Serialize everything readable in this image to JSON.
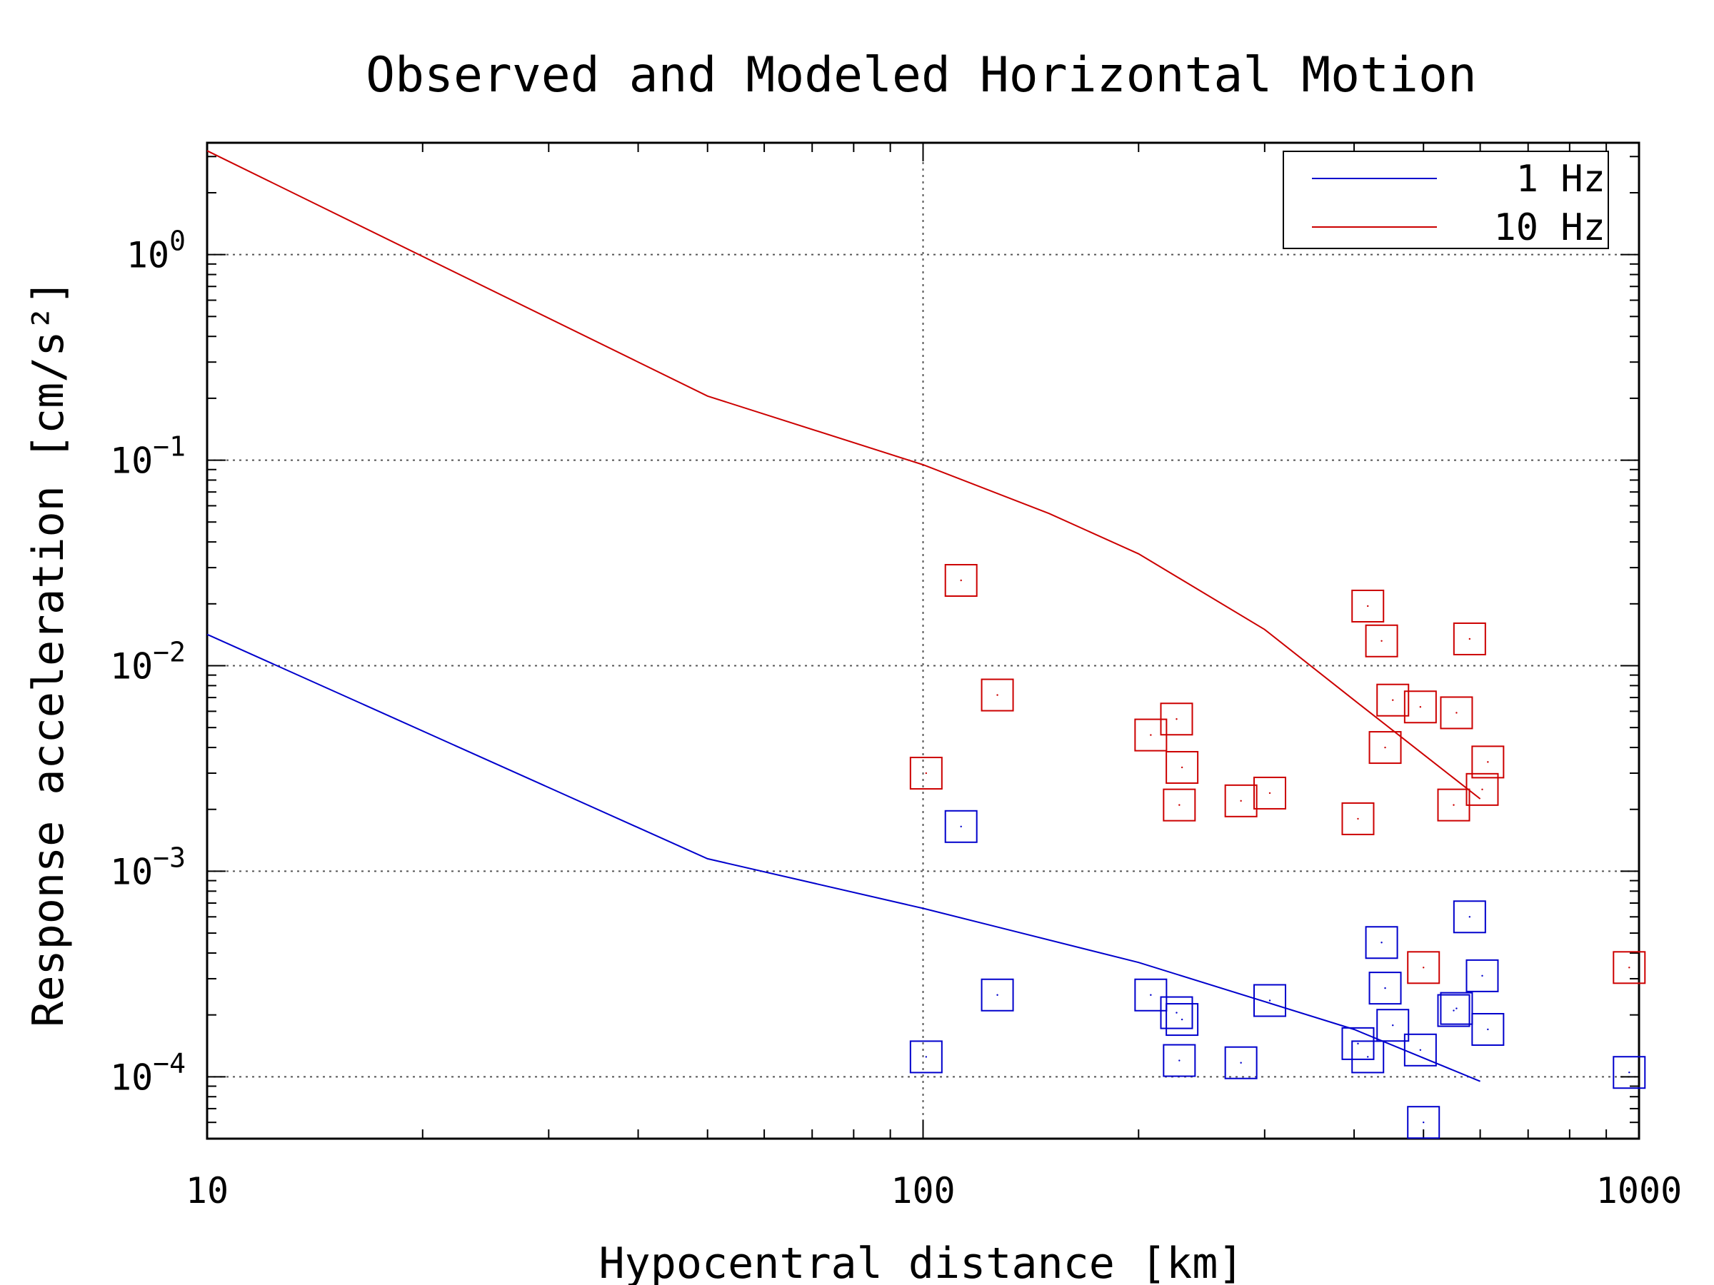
{
  "chart_data": {
    "type": "scatter",
    "title": "Observed and Modeled Horizontal Motion",
    "xlabel": "Hypocentral distance [km]",
    "ylabel": "Response acceleration [cm/s²]",
    "xscale": "log",
    "yscale": "log",
    "xlim": [
      10,
      1000
    ],
    "ylim": [
      5e-05,
      3.5
    ],
    "x_ticks": [
      10,
      100,
      1000
    ],
    "x_tick_labels": [
      "10",
      "100",
      "1000"
    ],
    "y_ticks": [
      0.0001,
      0.001,
      0.01,
      0.1,
      1
    ],
    "y_tick_labels": [
      {
        "base": "10",
        "exp": "−4"
      },
      {
        "base": "10",
        "exp": "−3"
      },
      {
        "base": "10",
        "exp": "−2"
      },
      {
        "base": "10",
        "exp": "−1"
      },
      {
        "base": "10",
        "exp": "0"
      }
    ],
    "grid": true,
    "legend_position": "top-right",
    "series": [
      {
        "name": "1 Hz",
        "color": "#0000cc",
        "model": {
          "x": [
            10,
            50,
            100,
            200,
            400,
            600
          ],
          "y": [
            0.0142,
            0.00115,
            0.00066,
            0.00036,
            0.00017,
            9.5e-05
          ]
        },
        "observed": {
          "x": [
            101,
            113,
            127,
            208,
            226,
            228,
            230,
            278,
            305,
            405,
            418,
            437,
            442,
            453,
            495,
            500,
            551,
            556,
            580,
            604,
            615,
            969
          ],
          "y": [
            0.000125,
            0.00165,
            0.00025,
            0.00025,
            0.000205,
            0.00012,
            0.00019,
            0.000117,
            0.000235,
            0.000145,
            0.000125,
            0.00045,
            0.00027,
            0.000178,
            0.000135,
            6e-05,
            0.00021,
            0.000215,
            0.0006,
            0.00031,
            0.00017,
            0.000105
          ]
        }
      },
      {
        "name": "10 Hz",
        "color": "#cc0000",
        "model": {
          "x": [
            10,
            50,
            100,
            150,
            200,
            300,
            400,
            500,
            600
          ],
          "y": [
            3.2,
            0.205,
            0.095,
            0.055,
            0.035,
            0.015,
            0.0068,
            0.0037,
            0.00225
          ]
        },
        "observed": {
          "x": [
            101,
            113,
            127,
            208,
            226,
            228,
            230,
            278,
            305,
            405,
            418,
            437,
            442,
            453,
            495,
            500,
            551,
            556,
            580,
            604,
            615,
            969
          ],
          "y": [
            0.003,
            0.026,
            0.0072,
            0.0046,
            0.0055,
            0.0021,
            0.0032,
            0.0022,
            0.0024,
            0.0018,
            0.0195,
            0.0132,
            0.004,
            0.0068,
            0.0063,
            0.00034,
            0.0021,
            0.0059,
            0.0135,
            0.0025,
            0.0034,
            0.00034
          ]
        }
      }
    ]
  }
}
